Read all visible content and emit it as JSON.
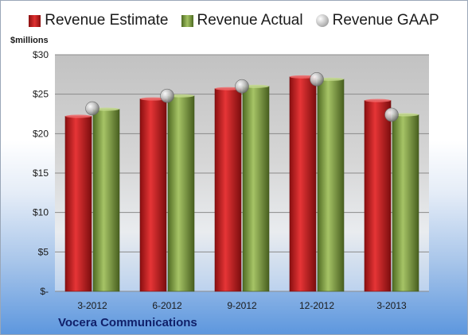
{
  "chart_data": {
    "type": "bar",
    "categories": [
      "3-2012",
      "6-2012",
      "9-2012",
      "12-2012",
      "3-2013"
    ],
    "series": [
      {
        "name": "Revenue Estimate",
        "values": [
          22.2,
          24.4,
          25.7,
          27.2,
          24.2
        ],
        "color": "#c0181c"
      },
      {
        "name": "Revenue Actual",
        "values": [
          23.1,
          24.8,
          26.0,
          26.9,
          22.4
        ],
        "color": "#7d9a3f"
      },
      {
        "name": "Revenue GAAP",
        "values": [
          23.2,
          24.8,
          26.0,
          26.9,
          22.4
        ],
        "color": "#b8b8b8",
        "marker": "circle"
      }
    ],
    "y_unit_label": "$millions",
    "yticks": [
      "$-",
      "$5",
      "$10",
      "$15",
      "$20",
      "$25",
      "$30"
    ],
    "ylim": [
      0,
      30
    ],
    "grid": true,
    "legend_position": "top",
    "footer_label": "Vocera Communications"
  }
}
